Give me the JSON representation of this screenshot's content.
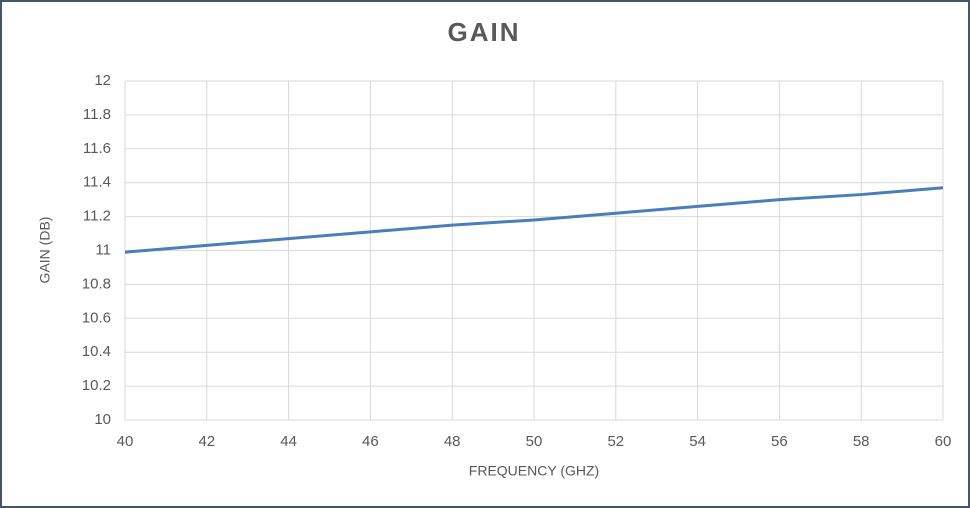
{
  "chart_data": {
    "type": "line",
    "title": "GAIN",
    "x_label": "FREQUENCY (GHZ)",
    "y_label": "GAIN (DB)",
    "x": [
      40,
      42,
      44,
      46,
      48,
      50,
      52,
      54,
      56,
      58,
      60
    ],
    "values": [
      10.99,
      11.03,
      11.07,
      11.11,
      11.15,
      11.18,
      11.22,
      11.26,
      11.3,
      11.33,
      11.37
    ],
    "color": "#4a7ebb",
    "xlim": [
      40,
      60
    ],
    "xticks": [
      40,
      42,
      44,
      46,
      48,
      50,
      52,
      54,
      56,
      58,
      60
    ],
    "ylim": [
      10,
      12
    ],
    "yticks": [
      10,
      10.2,
      10.4,
      10.6,
      10.8,
      11,
      11.2,
      11.4,
      11.6,
      11.8,
      12
    ],
    "grid": true
  }
}
